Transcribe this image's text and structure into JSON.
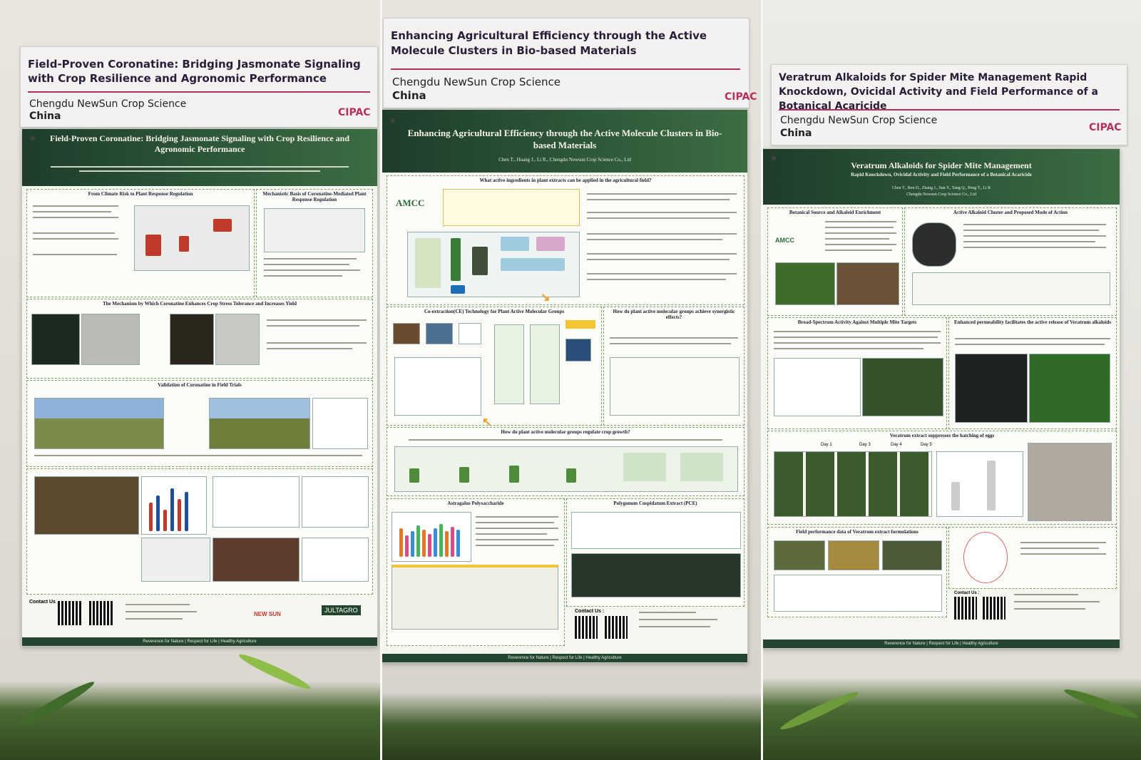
{
  "panels": [
    {
      "sign": {
        "title": "Field-Proven Coronatine: Bridging Jasmonate Signaling with Crop Resilience and Agronomic Performance",
        "org": "Chengdu NewSun Crop Science",
        "country": "China",
        "logo": "CIPAC"
      },
      "poster": {
        "title": "Field-Proven Coronatine: Bridging Jasmonate Signaling with Crop Resilience and Agronomic Performance",
        "sections": [
          "From Climate Risk to Plant Response Regulation",
          "Mechanistic Basis of Coronatine-Mediated Plant Response Regulation",
          "The Mechanism by Which Coronatine Enhances Crop Stress Tolerance and Increases Yield",
          "Validation of Coronatine in Field Trials"
        ],
        "contact": "Contact Us",
        "brands": [
          "NEW SUN",
          "JULTAGRO"
        ],
        "footer": "Reverence for Nature | Respect for Life | Healthy Agriculture"
      }
    },
    {
      "sign": {
        "title": "Enhancing Agricultural Efficiency through the Active Molecule Clusters in Bio-based Materials",
        "org": "Chengdu NewSun Crop Science",
        "country": "China",
        "logo": "CIPAC"
      },
      "poster": {
        "title": "Enhancing Agricultural Efficiency through the Active Molecule Clusters in Bio-based Materials",
        "authors": "Chen T., Huang J., Li R., Chengdu Newsun Crop Science Co., Ltd",
        "sections": [
          "What active ingredients in plant extracts can be applied in the agricultural field?",
          "Co-extraction(CE) Technology for Plant Active Molecular Groups",
          "How do plant active molecular groups achieve synergistic effects?",
          "How do plant active molecular groups regulate crop growth?",
          "Astragalus Polysaccharide",
          "Polygonum Cuspidatum Extract (PCE)"
        ],
        "brand": "AMCC",
        "contact": "Contact Us :",
        "footer": "Reverence for Nature | Respect for Life | Healthy Agriculture"
      }
    },
    {
      "sign": {
        "title": "Veratrum Alkaloids for Spider Mite Management Rapid Knockdown, Ovicidal Activity and Field Performance of a Botanical Acaricide",
        "org": "Chengdu NewSun Crop Science",
        "country": "China",
        "logo": "CIPAC"
      },
      "poster": {
        "title": "Veratrum Alkaloids for Spider Mite Management",
        "subtitle": "Rapid Knockdown, Ovicidal Activity and Field Performance of a Botanical Acaricide",
        "authors": "Chen T., Ren D., Zhang J., Sun Y., Tang Q., Peng T., Li R",
        "affiliation": "Chengdu Newsun Crop Science Co., Ltd",
        "sections": [
          "Botanical Source and Alkaloid Enrichment",
          "Active Alkaloid Cluster and Proposed Mode of Action",
          "Broad-Spectrum Activity Against Multiple Mite Targets",
          "Enhanced permeability facilitates the active release of Veratrum alkaloids",
          "Veratrum extract suppresses the hatching of eggs",
          "Field performance data of Veratrum extract formulations"
        ],
        "days": [
          "Day 1",
          "Day 3",
          "Day 4",
          "Day 5"
        ],
        "brand": "AMCC",
        "contact": "Contact Us :",
        "footer": "Reverence for Nature | Respect for Life | Healthy Agriculture"
      }
    }
  ]
}
